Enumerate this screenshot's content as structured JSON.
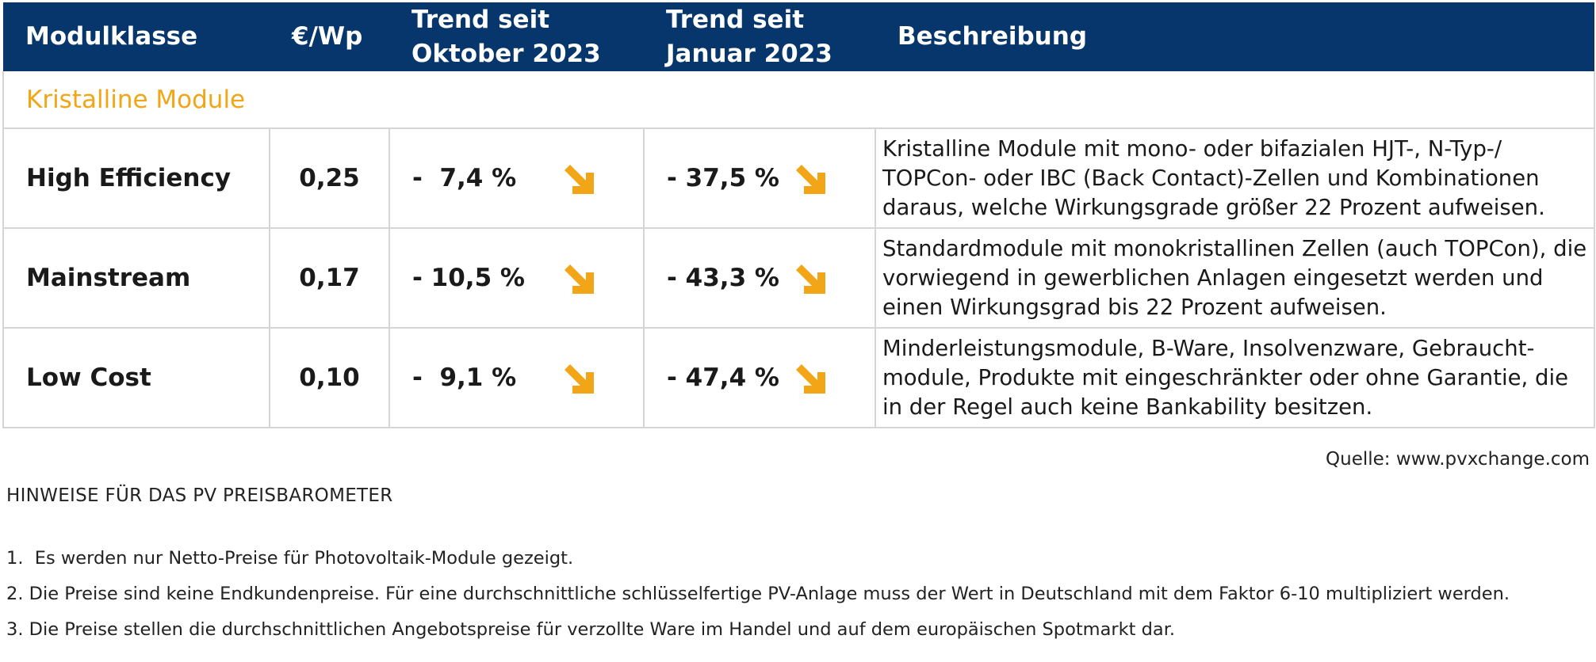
{
  "table": {
    "headers": {
      "name": "Modulklasse",
      "price": "€/Wp",
      "trend_oct": [
        "Trend seit",
        "Oktober 2023"
      ],
      "trend_jan": [
        "Trend seit",
        "Januar 2023"
      ],
      "description": "Beschreibung"
    },
    "section_label": "Kristalline Module",
    "rows": [
      {
        "name": "High Efficiency",
        "price": "0,25",
        "trend_oct": "-  7,4 %",
        "trend_jan": "- 37,5 %",
        "description": "Kristalline Module mit mono- oder bifazialen HJT-, N-Typ-/ TOPCon- oder IBC (Back Contact)-Zellen und Kombinationen daraus, welche Wirkungsgrade größer 22 Prozent aufweisen."
      },
      {
        "name": "Mainstream",
        "price": "0,17",
        "trend_oct": "- 10,5 %",
        "trend_jan": "- 43,3 %",
        "description": "Standardmodule mit monokristallinen Zellen (auch TOPCon), die vorwiegend in gewerblichen Anlagen eingesetzt werden und einen Wirkungsgrad bis 22 Prozent aufweisen."
      },
      {
        "name": "Low Cost",
        "price": "0,10",
        "trend_oct": "-  9,1 %",
        "trend_jan": "- 47,4 %",
        "description": "Minderleistungsmodule, B-Ware, Insolvenzware, Gebraucht-module, Produkte mit eingeschränkter oder ohne Garantie, die in der Regel auch keine Bankability besitzen."
      }
    ],
    "trend_icon": "arrow-down-right-icon"
  },
  "colors": {
    "header_bg": "#06366b",
    "accent": "#f2a516",
    "border": "#d5d5d5"
  },
  "source": "Quelle: www.pvxchange.com",
  "notes": {
    "title": "HINWEISE FÜR DAS PV PREISBAROMETER",
    "items": [
      "1.  Es werden nur Netto-Preise für Photovoltaik-Module gezeigt.",
      "2. Die Preise sind keine Endkundenpreise. Für eine durchschnittliche schlüsselfertige PV-Anlage muss der Wert in Deutschland mit dem Faktor 6-10 multipliziert werden.",
      "3. Die Preise stellen die durchschnittlichen Angebotspreise für verzollte Ware im Handel und auf dem europäischen Spotmarkt dar."
    ]
  }
}
